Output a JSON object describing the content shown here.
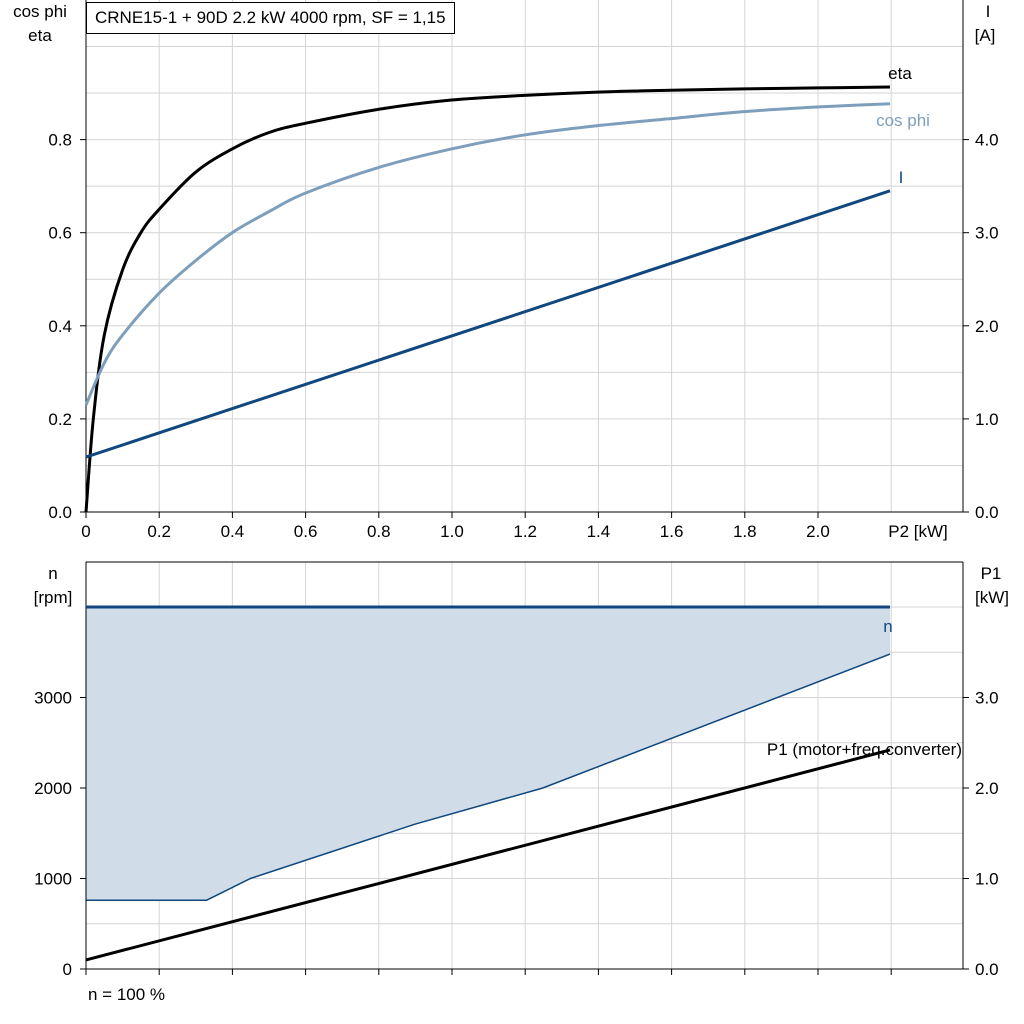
{
  "title": "CRNE15-1 + 90D   2.2 kW   4000 rpm, SF = 1,15",
  "footnote": "n = 100 %",
  "colors": {
    "eta": "#000000",
    "cos_phi": "#7d9fbc",
    "current": "#0f477e",
    "speed": "#0f477e",
    "speed_band": "#d0dce8",
    "p1": "#000000",
    "grid": "#d4d4d4"
  },
  "chart_data": [
    {
      "type": "line",
      "xlabel": "P2 [kW]",
      "ylabel_left": [
        "cos phi",
        "eta"
      ],
      "ylabel_right": [
        "I",
        "[A]"
      ],
      "xlim": [
        0,
        2.2
      ],
      "ylim_left": [
        0,
        1.0
      ],
      "ylim_right": [
        0,
        5.0
      ],
      "x_ticks": [
        "0",
        "0.2",
        "0.4",
        "0.6",
        "0.8",
        "1.0",
        "1.2",
        "1.4",
        "1.6",
        "1.8",
        "2.0"
      ],
      "y_ticks_left": [
        "0.0",
        "0.2",
        "0.4",
        "0.6",
        "0.8"
      ],
      "y_ticks_right": [
        "0.0",
        "1.0",
        "2.0",
        "3.0",
        "4.0"
      ],
      "grid": true,
      "series": [
        {
          "name": "eta",
          "axis": "left",
          "x": [
            0,
            0.02,
            0.05,
            0.1,
            0.15,
            0.2,
            0.3,
            0.4,
            0.5,
            0.6,
            0.8,
            1.0,
            1.2,
            1.4,
            1.6,
            1.8,
            2.0,
            2.2
          ],
          "y": [
            0.0,
            0.2,
            0.38,
            0.52,
            0.6,
            0.65,
            0.73,
            0.78,
            0.815,
            0.835,
            0.865,
            0.885,
            0.895,
            0.902,
            0.906,
            0.909,
            0.911,
            0.913
          ]
        },
        {
          "name": "cos phi",
          "axis": "left",
          "x": [
            0,
            0.05,
            0.1,
            0.2,
            0.3,
            0.4,
            0.5,
            0.6,
            0.8,
            1.0,
            1.2,
            1.4,
            1.6,
            1.8,
            2.0,
            2.2
          ],
          "y": [
            0.23,
            0.32,
            0.38,
            0.47,
            0.54,
            0.6,
            0.645,
            0.685,
            0.74,
            0.78,
            0.81,
            0.83,
            0.845,
            0.86,
            0.87,
            0.877
          ]
        },
        {
          "name": "I",
          "axis": "right",
          "x": [
            0,
            2.2
          ],
          "y": [
            0.59,
            3.45
          ]
        }
      ]
    },
    {
      "type": "line",
      "ylabel_left": [
        "n",
        "[rpm]"
      ],
      "ylabel_right": [
        "P1",
        "[kW]"
      ],
      "xlim": [
        0,
        2.2
      ],
      "ylim_left": [
        0,
        4400
      ],
      "ylim_right": [
        0,
        4.4
      ],
      "y_ticks_left": [
        "0",
        "1000",
        "2000",
        "3000"
      ],
      "y_ticks_right": [
        "0.0",
        "1.0",
        "2.0",
        "3.0"
      ],
      "grid": true,
      "band": {
        "x_upper": [
          0,
          2.2
        ],
        "upper": [
          4000,
          4000
        ],
        "x_lower": [
          0,
          0.33,
          0.45,
          0.9,
          1.25,
          2.2
        ],
        "lower": [
          760,
          760,
          1000,
          1600,
          2000,
          3480
        ]
      },
      "series": [
        {
          "name": "n",
          "axis": "left",
          "x": [
            0,
            2.2
          ],
          "y": [
            4000,
            4000
          ]
        },
        {
          "name": "P1 (motor+freq.converter)",
          "axis": "right",
          "x": [
            0,
            2.2
          ],
          "y": [
            0.1,
            2.42
          ]
        }
      ]
    }
  ]
}
